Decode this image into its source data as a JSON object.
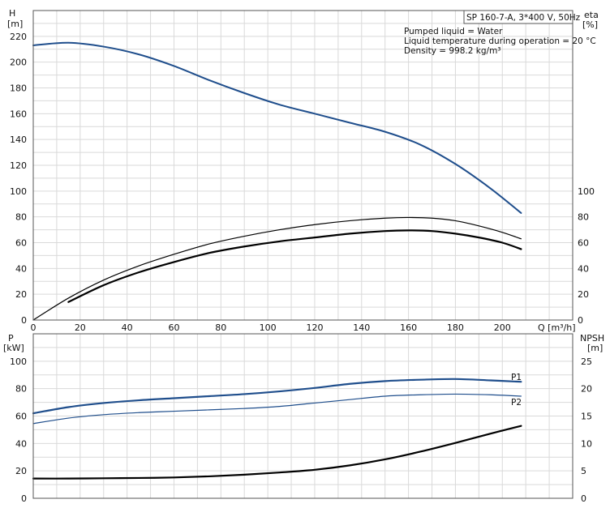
{
  "chart_data": [
    {
      "type": "line",
      "panel": "top",
      "title": "SP 160-7-A, 3*400 V, 50Hz",
      "annotations": [
        "Pumped liquid = Water",
        "Liquid temperature during operation = 20 °C",
        "Density = 998.2 kg/m³"
      ],
      "xlabel": "Q [m³/h]",
      "xlim": [
        0,
        230
      ],
      "xticks": [
        0,
        20,
        40,
        60,
        80,
        100,
        120,
        140,
        160,
        180,
        200
      ],
      "ylabel_left": [
        "H",
        "[m]"
      ],
      "ylim_left": [
        0,
        240
      ],
      "yticks_left": [
        0,
        20,
        40,
        60,
        80,
        100,
        120,
        140,
        160,
        180,
        200,
        220
      ],
      "ylabel_right": [
        "eta",
        "[%]"
      ],
      "ylim_right": [
        0,
        240
      ],
      "yticks_right": [
        0,
        20,
        40,
        60,
        80,
        100
      ],
      "grid": true,
      "colors": {
        "head": "#1f4e8c",
        "eta": "#000000"
      },
      "series": [
        {
          "axis": "left",
          "color": "#1f4e8c",
          "width": 2,
          "x": [
            0,
            15,
            30,
            45,
            60,
            75,
            90,
            105,
            120,
            135,
            150,
            165,
            180,
            195,
            208
          ],
          "y": [
            213,
            215,
            212,
            206,
            197,
            186,
            176,
            167,
            160,
            153,
            146,
            136,
            121,
            102,
            83
          ]
        },
        {
          "axis": "right",
          "color": "#000000",
          "width": 1.2,
          "x": [
            0,
            15,
            30,
            45,
            60,
            75,
            90,
            105,
            120,
            135,
            150,
            160,
            170,
            180,
            190,
            200,
            208
          ],
          "y": [
            0,
            17,
            31,
            42,
            51,
            59,
            65,
            70,
            74,
            77,
            79,
            79.5,
            79,
            77,
            73,
            68,
            63
          ]
        },
        {
          "axis": "right",
          "color": "#000000",
          "width": 2.2,
          "x": [
            15,
            30,
            45,
            60,
            75,
            90,
            105,
            120,
            135,
            150,
            160,
            170,
            180,
            190,
            200,
            208
          ],
          "y": [
            14,
            27,
            37,
            45,
            52,
            57,
            61,
            64,
            67,
            69,
            69.5,
            69,
            67,
            64,
            60,
            55
          ]
        }
      ]
    },
    {
      "type": "line",
      "panel": "bottom",
      "xlim": [
        0,
        230
      ],
      "ylabel_left": [
        "P",
        "[kW]"
      ],
      "ylim_left": [
        0,
        120
      ],
      "yticks_left": [
        0,
        20,
        40,
        60,
        80,
        100
      ],
      "ylabel_right": [
        "NPSH",
        "[m]"
      ],
      "ylim_right": [
        0,
        30
      ],
      "yticks_right": [
        0,
        5,
        10,
        15,
        20,
        25
      ],
      "grid": true,
      "series": [
        {
          "name": "P1",
          "axis": "left",
          "color": "#1f4e8c",
          "width": 2.2,
          "x": [
            0,
            15,
            30,
            45,
            60,
            75,
            90,
            105,
            120,
            135,
            150,
            165,
            180,
            195,
            208
          ],
          "y": [
            62,
            66.5,
            69.5,
            71.5,
            73,
            74.5,
            76,
            78,
            80.5,
            83.5,
            85.5,
            86.5,
            87,
            86,
            85
          ]
        },
        {
          "name": "P2",
          "axis": "left",
          "color": "#1f4e8c",
          "width": 1.2,
          "x": [
            0,
            15,
            30,
            45,
            60,
            75,
            90,
            105,
            120,
            135,
            150,
            165,
            180,
            195,
            208
          ],
          "y": [
            54.5,
            58.5,
            61,
            62.5,
            63.5,
            64.5,
            65.5,
            67,
            69.5,
            72,
            74.5,
            75.5,
            76,
            75.5,
            74.5
          ]
        },
        {
          "axis": "right",
          "color": "#000000",
          "width": 2.2,
          "x": [
            0,
            15,
            30,
            45,
            60,
            75,
            90,
            105,
            120,
            135,
            150,
            165,
            180,
            195,
            208
          ],
          "y": [
            3.6,
            3.6,
            3.65,
            3.7,
            3.8,
            4.0,
            4.3,
            4.7,
            5.2,
            6.0,
            7.1,
            8.5,
            10.1,
            11.8,
            13.2
          ]
        }
      ]
    }
  ]
}
